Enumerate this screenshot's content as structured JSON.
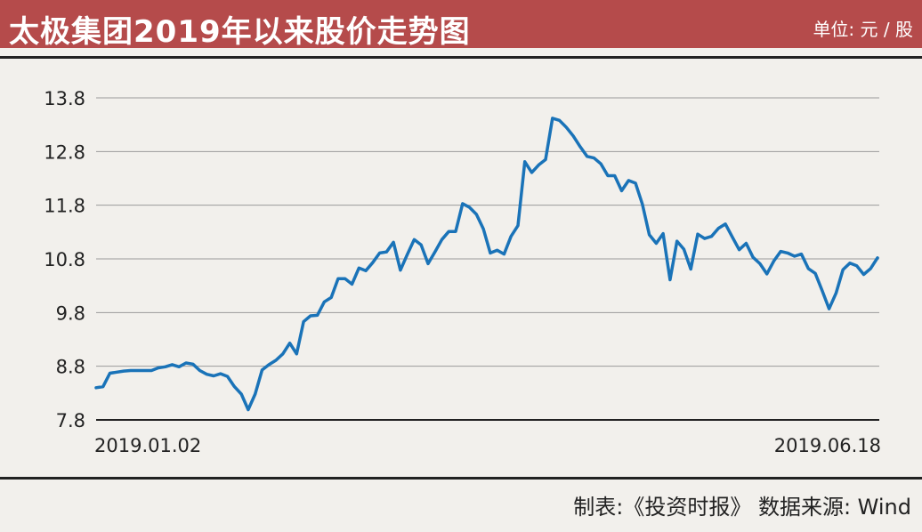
{
  "header": {
    "title": "太极集团2019年以来股价走势图",
    "unit": "单位: 元 / 股"
  },
  "footer": {
    "credit": "制表:《投资时报》 数据来源: Wind"
  },
  "colors": {
    "header_bg": "#b54b4b",
    "line": "#1a73b8",
    "background": "#f2f0ec"
  },
  "chart_data": {
    "type": "line",
    "title": "太极集团2019年以来股价走势图",
    "xlabel": "",
    "ylabel": "",
    "x_tick_labels": [
      "2019.01.02",
      "2019.06.18"
    ],
    "y_ticks": [
      "13.8",
      "12.8",
      "11.8",
      "10.8",
      "9.8",
      "8.8",
      "7.8"
    ],
    "ylim": [
      7.8,
      13.8
    ],
    "grid": true,
    "series": [
      {
        "values": [
          8.4,
          8.42,
          8.67,
          8.69,
          8.71,
          8.72,
          8.72,
          8.72,
          8.72,
          8.77,
          8.79,
          8.83,
          8.79,
          8.86,
          8.84,
          8.72,
          8.65,
          8.62,
          8.66,
          8.61,
          8.42,
          8.28,
          7.99,
          8.28,
          8.73,
          8.83,
          8.91,
          9.03,
          9.23,
          9.03,
          9.63,
          9.74,
          9.75,
          10.0,
          10.08,
          10.43,
          10.43,
          10.33,
          10.63,
          10.58,
          10.73,
          10.91,
          10.93,
          11.11,
          10.59,
          10.88,
          11.16,
          11.06,
          10.71,
          10.93,
          11.16,
          11.31,
          11.31,
          11.83,
          11.76,
          11.63,
          11.36,
          10.91,
          10.96,
          10.89,
          11.22,
          11.42,
          12.61,
          12.41,
          12.55,
          12.65,
          13.42,
          13.38,
          13.25,
          13.09,
          12.89,
          12.71,
          12.68,
          12.57,
          12.35,
          12.35,
          12.07,
          12.26,
          12.21,
          11.82,
          11.25,
          11.09,
          11.27,
          10.41,
          11.13,
          10.98,
          10.61,
          11.26,
          11.18,
          11.22,
          11.37,
          11.45,
          11.21,
          10.97,
          11.09,
          10.83,
          10.71,
          10.52,
          10.76,
          10.94,
          10.91,
          10.85,
          10.89,
          10.62,
          10.53,
          10.21,
          9.87,
          10.16,
          10.6,
          10.72,
          10.67,
          10.51,
          10.62,
          10.82
        ]
      }
    ]
  }
}
